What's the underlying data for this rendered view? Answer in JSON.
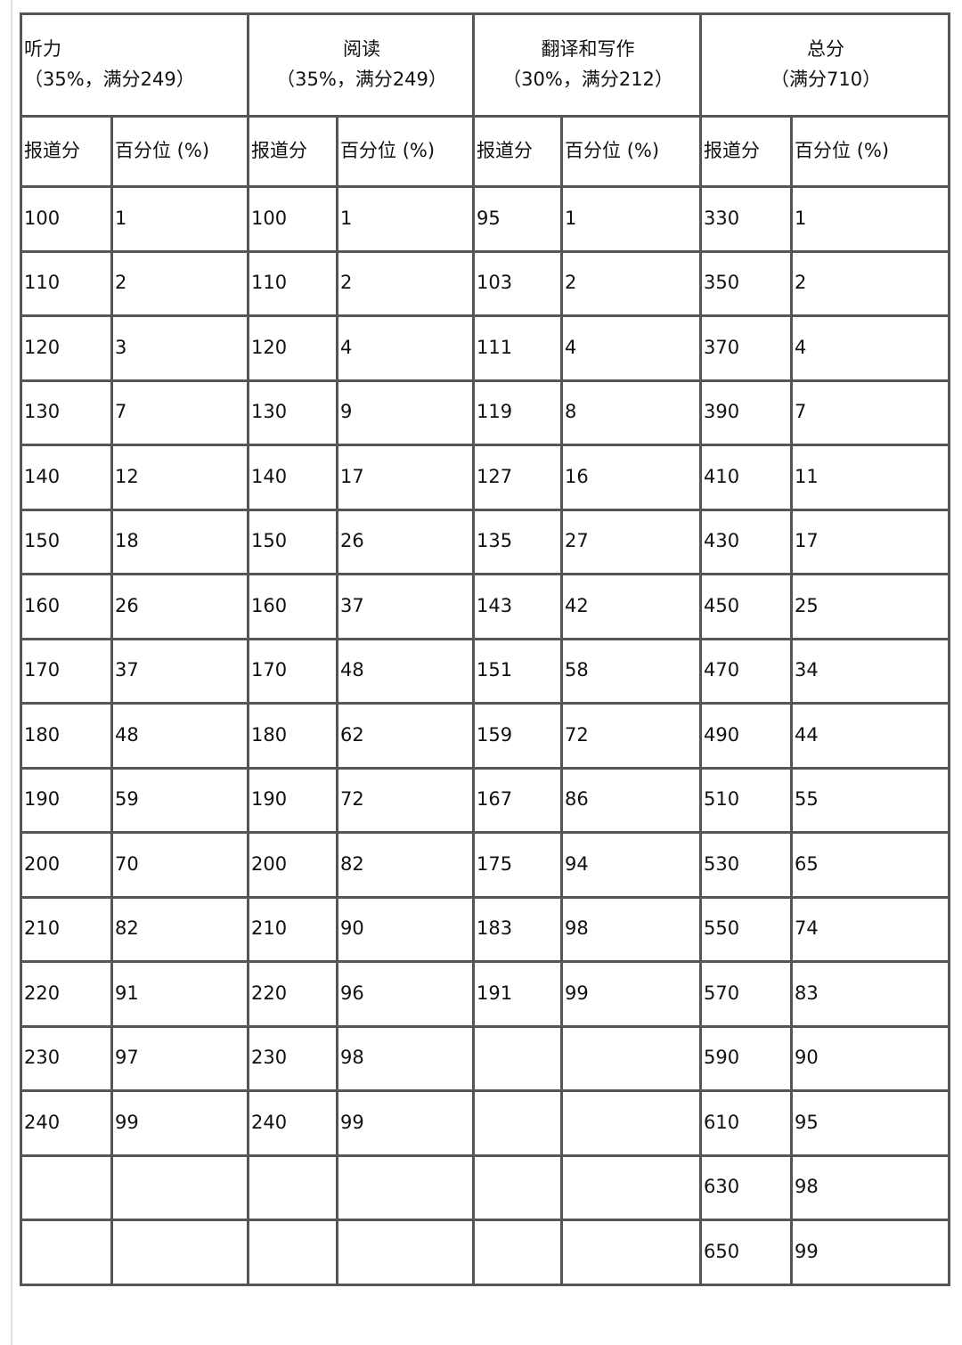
{
  "sections": [
    {
      "title": "听力",
      "subtitle": "（35%，满分249）"
    },
    {
      "title": "阅读",
      "subtitle": "（35%，满分249）"
    },
    {
      "title": "翻译和写作",
      "subtitle": "（30%，满分212）"
    },
    {
      "title": "总分",
      "subtitle": "（满分710）"
    }
  ],
  "column_headers": [
    "报道分",
    "百分位 (%)"
  ],
  "rows": [
    [
      "100",
      "1",
      "100",
      "1",
      "95",
      "1",
      "330",
      "1"
    ],
    [
      "110",
      "2",
      "110",
      "2",
      "103",
      "2",
      "350",
      "2"
    ],
    [
      "120",
      "3",
      "120",
      "4",
      "111",
      "4",
      "370",
      "4"
    ],
    [
      "130",
      "7",
      "130",
      "9",
      "119",
      "8",
      "390",
      "7"
    ],
    [
      "140",
      "12",
      "140",
      "17",
      "127",
      "16",
      "410",
      "11"
    ],
    [
      "150",
      "18",
      "150",
      "26",
      "135",
      "27",
      "430",
      "17"
    ],
    [
      "160",
      "26",
      "160",
      "37",
      "143",
      "42",
      "450",
      "25"
    ],
    [
      "170",
      "37",
      "170",
      "48",
      "151",
      "58",
      "470",
      "34"
    ],
    [
      "180",
      "48",
      "180",
      "62",
      "159",
      "72",
      "490",
      "44"
    ],
    [
      "190",
      "59",
      "190",
      "72",
      "167",
      "86",
      "510",
      "55"
    ],
    [
      "200",
      "70",
      "200",
      "82",
      "175",
      "94",
      "530",
      "65"
    ],
    [
      "210",
      "82",
      "210",
      "90",
      "183",
      "98",
      "550",
      "74"
    ],
    [
      "220",
      "91",
      "220",
      "96",
      "191",
      "99",
      "570",
      "83"
    ],
    [
      "230",
      "97",
      "230",
      "98",
      "",
      "",
      "590",
      "90"
    ],
    [
      "240",
      "99",
      "240",
      "99",
      "",
      "",
      "610",
      "95"
    ],
    [
      "",
      "",
      "",
      "",
      "",
      "",
      "630",
      "98"
    ],
    [
      "",
      "",
      "",
      "",
      "",
      "",
      "650",
      "99"
    ]
  ]
}
